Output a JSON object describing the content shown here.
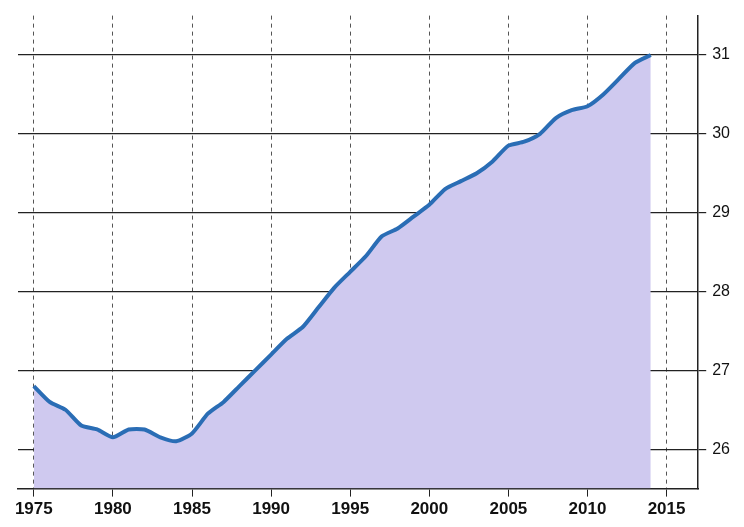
{
  "chart_data": {
    "type": "area",
    "x": [
      1975,
      1976,
      1977,
      1978,
      1979,
      1980,
      1981,
      1982,
      1983,
      1984,
      1985,
      1986,
      1987,
      1988,
      1989,
      1990,
      1991,
      1992,
      1993,
      1994,
      1995,
      1996,
      1997,
      1998,
      1999,
      2000,
      2001,
      2002,
      2003,
      2004,
      2005,
      2006,
      2007,
      2008,
      2009,
      2010,
      2011,
      2012,
      2013,
      2014
    ],
    "values": [
      26.8,
      26.6,
      26.5,
      26.3,
      26.25,
      26.15,
      26.25,
      26.25,
      26.15,
      26.1,
      26.2,
      26.45,
      26.6,
      26.8,
      27.0,
      27.2,
      27.4,
      27.55,
      27.8,
      28.05,
      28.25,
      28.45,
      28.7,
      28.8,
      28.95,
      29.1,
      29.3,
      29.4,
      29.5,
      29.65,
      29.85,
      29.9,
      30.0,
      30.2,
      30.3,
      30.35,
      30.5,
      30.7,
      30.9,
      31.0
    ],
    "color": "#2a6db5",
    "xlim": [
      1974,
      2017
    ],
    "xticks": [
      1975,
      1980,
      1985,
      1990,
      1995,
      2000,
      2005,
      2010,
      2015
    ],
    "ylim": [
      25.5,
      31.5
    ],
    "yticks": [
      26,
      27,
      28,
      29,
      30,
      31
    ],
    "grid": true
  }
}
